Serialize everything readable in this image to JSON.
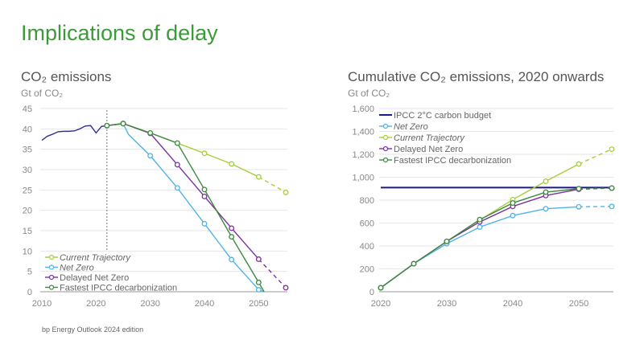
{
  "title": "Implications of delay",
  "footer": "bp Energy Outlook 2024 edition",
  "colors": {
    "title": "#3d9a3a",
    "historical": "#2e3192",
    "current_trajectory": "#a6ce39",
    "net_zero": "#4eb3e8",
    "delayed_net_zero": "#7b2f9e",
    "fastest_ipcc": "#3c8a3e",
    "ipcc_budget": "#1a1a8c"
  },
  "chart_data": [
    {
      "type": "line",
      "title": "CO₂ emissions",
      "ylabel": "Gt of CO₂",
      "xlim": [
        2010,
        2055
      ],
      "ylim": [
        0,
        45
      ],
      "xticks": [
        "2010",
        "2020",
        "2030",
        "2040",
        "2050"
      ],
      "yticks": [
        "0",
        "5",
        "10",
        "15",
        "20",
        "25",
        "30",
        "35",
        "40",
        "45"
      ],
      "grid": "horizontal",
      "reference_line": {
        "type": "vertical-dashed",
        "x": 2022
      },
      "legend_position": "bottom-left",
      "series": [
        {
          "key": "historical",
          "x": [
            2010,
            2011,
            2012,
            2013,
            2014,
            2015,
            2016,
            2017,
            2018,
            2019,
            2020,
            2021,
            2022
          ],
          "y": [
            37.2,
            38.2,
            38.7,
            39.3,
            39.4,
            39.4,
            39.5,
            40,
            40.7,
            40.8,
            39,
            40.6,
            40.8
          ],
          "markers": []
        },
        {
          "key": "current_trajectory",
          "name": "Current Trajectory",
          "italic": true,
          "x": [
            2022,
            2025,
            2030,
            2035,
            2040,
            2045,
            2050,
            2055
          ],
          "y": [
            40.8,
            41.3,
            39,
            36.5,
            34,
            31.4,
            28.2,
            24.4
          ],
          "markers": [
            2022,
            2025,
            2030,
            2035,
            2040,
            2045,
            2050,
            2055
          ],
          "dashed_from": 2050
        },
        {
          "key": "net_zero",
          "name": "Net Zero",
          "italic": true,
          "x": [
            2022,
            2025,
            2026,
            2030,
            2035,
            2040,
            2045,
            2050,
            2051
          ],
          "y": [
            40.8,
            41.3,
            38.6,
            33.4,
            25.5,
            16.7,
            7.9,
            0.5,
            0
          ],
          "markers": [
            2022,
            2025,
            2030,
            2035,
            2040,
            2045,
            2050
          ]
        },
        {
          "key": "delayed_net_zero",
          "name": "Delayed Net Zero",
          "x": [
            2022,
            2025,
            2030,
            2035,
            2040,
            2045,
            2050,
            2055
          ],
          "y": [
            40.8,
            41.3,
            38.9,
            31.2,
            23.4,
            15.6,
            8,
            1
          ],
          "markers": [
            2022,
            2025,
            2030,
            2035,
            2040,
            2045,
            2050,
            2055
          ],
          "dashed_from": 2050
        },
        {
          "key": "fastest_ipcc",
          "name": "Fastest IPCC decarbonization",
          "x": [
            2022,
            2025,
            2030,
            2035,
            2040,
            2045,
            2050,
            2051
          ],
          "y": [
            40.8,
            41.3,
            39,
            36.5,
            25.1,
            13.5,
            2.3,
            0
          ],
          "markers": [
            2022,
            2025,
            2030,
            2035,
            2040,
            2045,
            2050
          ]
        }
      ]
    },
    {
      "type": "line",
      "title": "Cumulative CO₂ emissions, 2020 onwards",
      "ylabel": "Gt of CO₂",
      "xlim": [
        2020,
        2055
      ],
      "ylim": [
        0,
        1600
      ],
      "xticks": [
        "2020",
        "2030",
        "2040",
        "2050"
      ],
      "yticks": [
        "0",
        "200",
        "400",
        "600",
        "800",
        "1,000",
        "1,200",
        "1,400",
        "1,600"
      ],
      "grid": "horizontal",
      "legend_position": "top-left",
      "series": [
        {
          "key": "ipcc_budget",
          "name": "IPCC 2°C carbon budget",
          "x": [
            2020,
            2055
          ],
          "y": [
            910,
            910
          ],
          "markers": [],
          "thick": true
        },
        {
          "key": "net_zero",
          "name": "Net Zero",
          "italic": true,
          "x": [
            2020,
            2025,
            2030,
            2035,
            2040,
            2045,
            2050,
            2055
          ],
          "y": [
            35,
            245,
            420,
            565,
            665,
            725,
            742,
            745
          ],
          "markers": [
            2020,
            2025,
            2030,
            2035,
            2040,
            2045,
            2050,
            2055
          ],
          "dashed_from": 2050
        },
        {
          "key": "current_trajectory",
          "name": "Current Trajectory",
          "italic": true,
          "x": [
            2020,
            2025,
            2030,
            2035,
            2040,
            2045,
            2050,
            2055
          ],
          "y": [
            35,
            245,
            440,
            625,
            805,
            965,
            1115,
            1245
          ],
          "markers": [
            2020,
            2025,
            2030,
            2035,
            2040,
            2045,
            2050,
            2055
          ],
          "dashed_from": 2050
        },
        {
          "key": "delayed_net_zero",
          "name": "Delayed Net Zero",
          "x": [
            2020,
            2025,
            2030,
            2035,
            2040,
            2045,
            2050,
            2055
          ],
          "y": [
            35,
            245,
            440,
            610,
            745,
            840,
            895,
            905
          ],
          "markers": [
            2020,
            2025,
            2030,
            2035,
            2040,
            2045,
            2050,
            2055
          ],
          "dashed_from": 2050
        },
        {
          "key": "fastest_ipcc",
          "name": "Fastest IPCC decarbonization",
          "x": [
            2020,
            2025,
            2030,
            2035,
            2040,
            2045,
            2050,
            2055
          ],
          "y": [
            35,
            245,
            440,
            630,
            775,
            870,
            900,
            905
          ],
          "markers": [
            2020,
            2025,
            2030,
            2035,
            2040,
            2045,
            2050,
            2055
          ],
          "dashed_from": 2050
        }
      ]
    }
  ]
}
